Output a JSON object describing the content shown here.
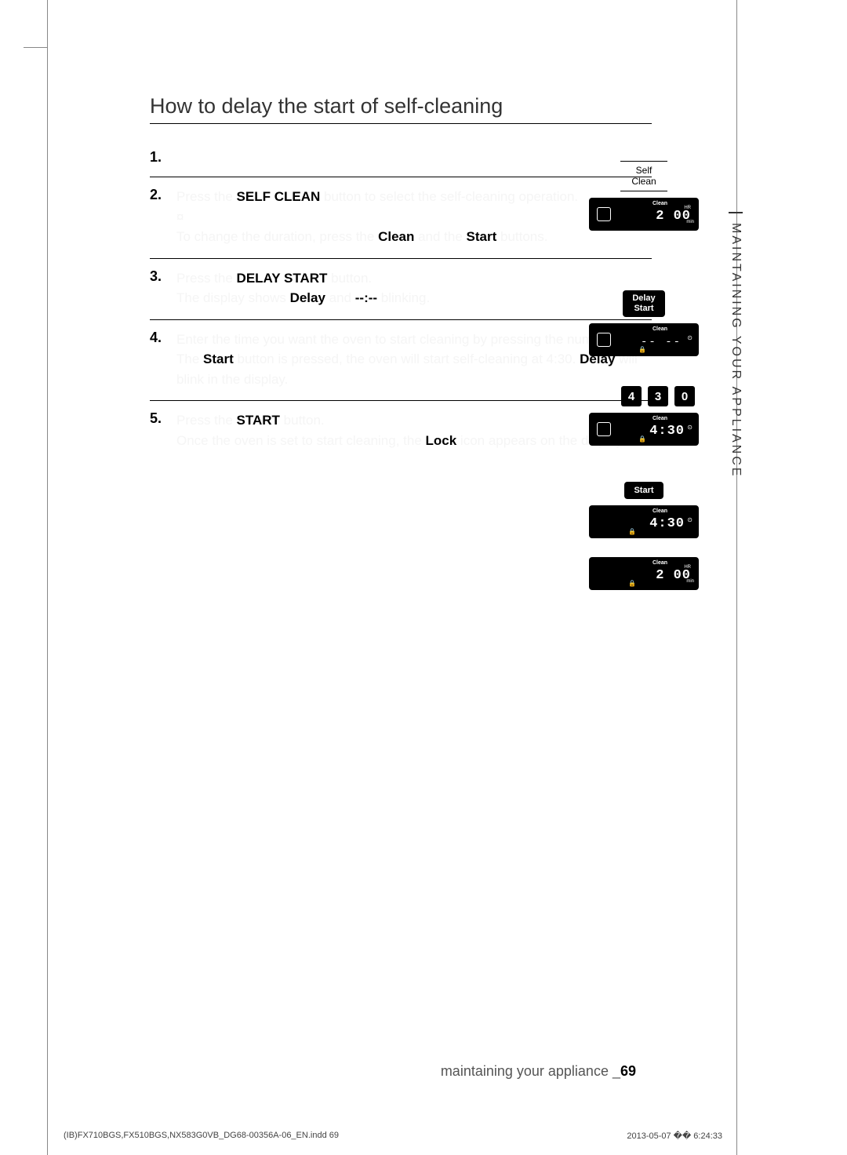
{
  "section_title": "How to delay the start of self-cleaning",
  "side_tab": "MAINTAINING YOUR APPLIANCE",
  "steps": [
    {
      "num": "1.",
      "body_html": ""
    },
    {
      "num": "2.",
      "body_html": "<span class='ghost'>Press the </span><b>SELF CLEAN</b><span class='ghost'> button to select the self-cleaning operation.</span><br><span class='ghost'>¤</span><br><span class='ghost'>To change the duration, press the </span><b>Clean</b><span class='ghost'> and the </span><b>Start</b><span class='ghost'> buttons.</span>"
    },
    {
      "num": "3.",
      "body_html": "<span class='ghost'>Press the </span><b>DELAY START</b><span class='ghost'> button.</span><br><span class='ghost'>The display shows </span><b>Delay</b><span class='ghost'> and </span><b>--:--</b><span class='ghost'> blinking.</span>"
    },
    {
      "num": "4.",
      "body_html": "<span class='ghost'>Enter the time you want the oven to start cleaning by pressing the numbers. ¤</span><br><span class='ghost'>The </span><b>Start</b><span class='ghost'> button is pressed, the oven will start self-cleaning at 4:30. </span><b>Delay</b><span class='ghost'> will blink in the display.</span>"
    },
    {
      "num": "5.",
      "body_html": "<span class='ghost'>Press the </span><b>START</b><span class='ghost'> button.</span><br><span class='ghost'>Once the oven is set to start cleaning, the </span><b>Lock</b><span class='ghost'> icon appears on the display.</span>"
    }
  ],
  "illustrations": {
    "self_clean_label": "Self\nClean",
    "delay_start_label": "Delay\nStart",
    "start_label": "Start",
    "lcd_clean": "Clean",
    "lcd_time_200": "2 00",
    "lcd_hr": "HR",
    "lcd_min": "min",
    "lcd_dash": "-- --",
    "lcd_430": "4:30",
    "lcd_430b": "4 30",
    "am_pm": "",
    "numpad": [
      "4",
      "3",
      "0"
    ]
  },
  "footer": {
    "text": "maintaining your appliance _",
    "page": "69"
  },
  "bottom": {
    "left": "(IB)FX710BGS,FX510BGS,NX583G0VB_DG68-00356A-06_EN.indd   69",
    "right": "2013-05-07   �� 6:24:33"
  },
  "colors": {
    "text": "#000000",
    "bg": "#ffffff",
    "lcd_bg": "#000000",
    "lcd_fg": "#ffffff",
    "footer_gray": "#555555"
  }
}
